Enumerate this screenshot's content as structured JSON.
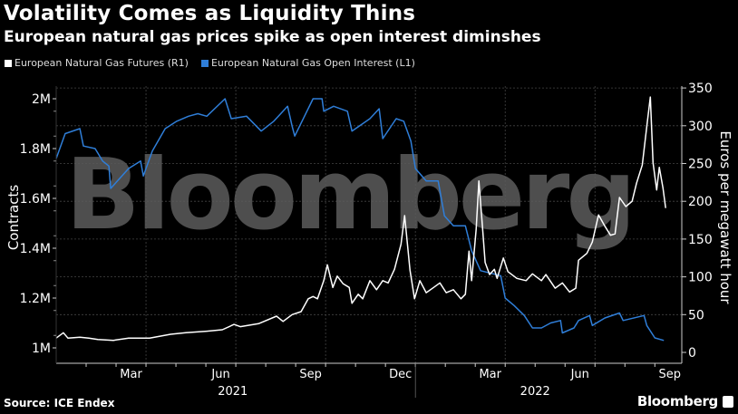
{
  "chart_data": {
    "type": "line",
    "title": "Volatility Comes as Liquidity Thins",
    "subtitle": "European natural gas prices spike as open interest diminshes",
    "x_unit": "months since 2021-01-01",
    "xlim": [
      0,
      20.9
    ],
    "x_ticks": [
      {
        "label": "Mar",
        "x": 2.5
      },
      {
        "label": "Jun",
        "x": 5.5
      },
      {
        "label": "Sep",
        "x": 8.5
      },
      {
        "label": "Dec",
        "x": 11.5
      },
      {
        "label": "Mar",
        "x": 14.5
      },
      {
        "label": "Jun",
        "x": 17.5
      },
      {
        "label": "Sep",
        "x": 20.5
      }
    ],
    "year_labels": [
      {
        "label": "2021",
        "x": 5.9
      },
      {
        "label": "2022",
        "x": 16
      }
    ],
    "left_axis": {
      "label": "Contracts",
      "ylim": [
        0.975,
        2.05
      ],
      "ticks": [
        {
          "v": 1.0,
          "label": "1M"
        },
        {
          "v": 1.2,
          "label": "1.2M"
        },
        {
          "v": 1.4,
          "label": "1.4M"
        },
        {
          "v": 1.6,
          "label": "1.6M"
        },
        {
          "v": 1.8,
          "label": "1.8M"
        },
        {
          "v": 2.0,
          "label": "2M"
        }
      ]
    },
    "right_axis": {
      "label": "Euros per megawatt hour",
      "ylim": [
        0,
        355
      ],
      "ticks": [
        0,
        50,
        100,
        150,
        200,
        250,
        300,
        350
      ]
    },
    "grid": true,
    "legend_placement": "top-left",
    "series": [
      {
        "name": "European Natural Gas Futures (R1)",
        "axis": "right",
        "color": "#ffffff",
        "points": [
          [
            0,
            19
          ],
          [
            0.24,
            26
          ],
          [
            0.39,
            19
          ],
          [
            0.79,
            20
          ],
          [
            1.09,
            19
          ],
          [
            1.39,
            17
          ],
          [
            1.91,
            16
          ],
          [
            2.42,
            19
          ],
          [
            3.12,
            19
          ],
          [
            3.82,
            24
          ],
          [
            4.33,
            26
          ],
          [
            5.03,
            28
          ],
          [
            5.55,
            30
          ],
          [
            5.94,
            37
          ],
          [
            6.15,
            34
          ],
          [
            6.76,
            38
          ],
          [
            7.36,
            48
          ],
          [
            7.58,
            41
          ],
          [
            7.88,
            50
          ],
          [
            8.18,
            54
          ],
          [
            8.42,
            71
          ],
          [
            8.58,
            74
          ],
          [
            8.73,
            71
          ],
          [
            8.94,
            95
          ],
          [
            9.06,
            116
          ],
          [
            9.24,
            86
          ],
          [
            9.39,
            101
          ],
          [
            9.58,
            91
          ],
          [
            9.79,
            86
          ],
          [
            9.88,
            65
          ],
          [
            10.09,
            77
          ],
          [
            10.24,
            71
          ],
          [
            10.48,
            95
          ],
          [
            10.7,
            83
          ],
          [
            10.91,
            95
          ],
          [
            11.09,
            92
          ],
          [
            11.3,
            110
          ],
          [
            11.52,
            143
          ],
          [
            11.64,
            181
          ],
          [
            11.82,
            109
          ],
          [
            11.97,
            71
          ],
          [
            12.15,
            95
          ],
          [
            12.36,
            79
          ],
          [
            12.61,
            86
          ],
          [
            12.82,
            92
          ],
          [
            13.03,
            79
          ],
          [
            13.27,
            83
          ],
          [
            13.52,
            71
          ],
          [
            13.67,
            77
          ],
          [
            13.79,
            134
          ],
          [
            13.88,
            95
          ],
          [
            14.03,
            163
          ],
          [
            14.12,
            227
          ],
          [
            14.24,
            167
          ],
          [
            14.33,
            119
          ],
          [
            14.48,
            103
          ],
          [
            14.64,
            110
          ],
          [
            14.73,
            98
          ],
          [
            14.94,
            125
          ],
          [
            15.09,
            107
          ],
          [
            15.39,
            98
          ],
          [
            15.7,
            95
          ],
          [
            15.91,
            104
          ],
          [
            16.21,
            95
          ],
          [
            16.36,
            103
          ],
          [
            16.67,
            85
          ],
          [
            16.91,
            92
          ],
          [
            17.15,
            80
          ],
          [
            17.36,
            85
          ],
          [
            17.45,
            122
          ],
          [
            17.73,
            131
          ],
          [
            17.91,
            146
          ],
          [
            18.12,
            182
          ],
          [
            18.33,
            167
          ],
          [
            18.52,
            155
          ],
          [
            18.67,
            157
          ],
          [
            18.82,
            205
          ],
          [
            19.03,
            193
          ],
          [
            19.24,
            200
          ],
          [
            19.39,
            224
          ],
          [
            19.58,
            248
          ],
          [
            19.73,
            299
          ],
          [
            19.85,
            338
          ],
          [
            19.94,
            251
          ],
          [
            20.06,
            215
          ],
          [
            20.15,
            245
          ],
          [
            20.27,
            218
          ],
          [
            20.36,
            191
          ]
        ]
      },
      {
        "name": "European Natural Gas Open Interest (L1)",
        "axis": "left",
        "color": "#2f7ed8",
        "points": [
          [
            0,
            1.76
          ],
          [
            0.3,
            1.86
          ],
          [
            0.79,
            1.88
          ],
          [
            0.91,
            1.81
          ],
          [
            1.3,
            1.8
          ],
          [
            1.55,
            1.75
          ],
          [
            1.76,
            1.73
          ],
          [
            1.82,
            1.64
          ],
          [
            2.12,
            1.68
          ],
          [
            2.42,
            1.72
          ],
          [
            2.82,
            1.75
          ],
          [
            2.91,
            1.69
          ],
          [
            3.21,
            1.79
          ],
          [
            3.64,
            1.88
          ],
          [
            4.03,
            1.91
          ],
          [
            4.42,
            1.93
          ],
          [
            4.73,
            1.94
          ],
          [
            5.03,
            1.93
          ],
          [
            5.64,
            2.0
          ],
          [
            5.85,
            1.92
          ],
          [
            6.36,
            1.93
          ],
          [
            6.85,
            1.87
          ],
          [
            7.27,
            1.91
          ],
          [
            7.73,
            1.97
          ],
          [
            7.88,
            1.89
          ],
          [
            7.97,
            1.85
          ],
          [
            8.58,
            2.0
          ],
          [
            8.88,
            2.0
          ],
          [
            8.94,
            1.95
          ],
          [
            9.27,
            1.97
          ],
          [
            9.73,
            1.95
          ],
          [
            9.88,
            1.87
          ],
          [
            10.48,
            1.92
          ],
          [
            10.79,
            1.96
          ],
          [
            10.91,
            1.84
          ],
          [
            11.36,
            1.92
          ],
          [
            11.61,
            1.91
          ],
          [
            11.85,
            1.83
          ],
          [
            12.0,
            1.72
          ],
          [
            12.36,
            1.67
          ],
          [
            12.76,
            1.67
          ],
          [
            12.97,
            1.53
          ],
          [
            13.27,
            1.49
          ],
          [
            13.67,
            1.49
          ],
          [
            13.88,
            1.39
          ],
          [
            14.18,
            1.31
          ],
          [
            14.85,
            1.29
          ],
          [
            15.0,
            1.2
          ],
          [
            15.3,
            1.17
          ],
          [
            15.64,
            1.13
          ],
          [
            15.91,
            1.08
          ],
          [
            16.21,
            1.08
          ],
          [
            16.52,
            1.1
          ],
          [
            16.85,
            1.11
          ],
          [
            16.91,
            1.06
          ],
          [
            17.3,
            1.08
          ],
          [
            17.45,
            1.11
          ],
          [
            17.82,
            1.13
          ],
          [
            17.91,
            1.09
          ],
          [
            18.33,
            1.12
          ],
          [
            18.82,
            1.14
          ],
          [
            18.94,
            1.11
          ],
          [
            19.64,
            1.13
          ],
          [
            19.73,
            1.09
          ],
          [
            20.0,
            1.04
          ],
          [
            20.3,
            1.03
          ]
        ]
      }
    ]
  },
  "legend": {
    "futures": "European Natural Gas Futures (R1)",
    "open_interest": "European Natural Gas Open Interest (L1)"
  },
  "watermark": "Bloomberg",
  "footer": {
    "source": "Source: ICE Endex",
    "brand": "Bloomberg"
  }
}
